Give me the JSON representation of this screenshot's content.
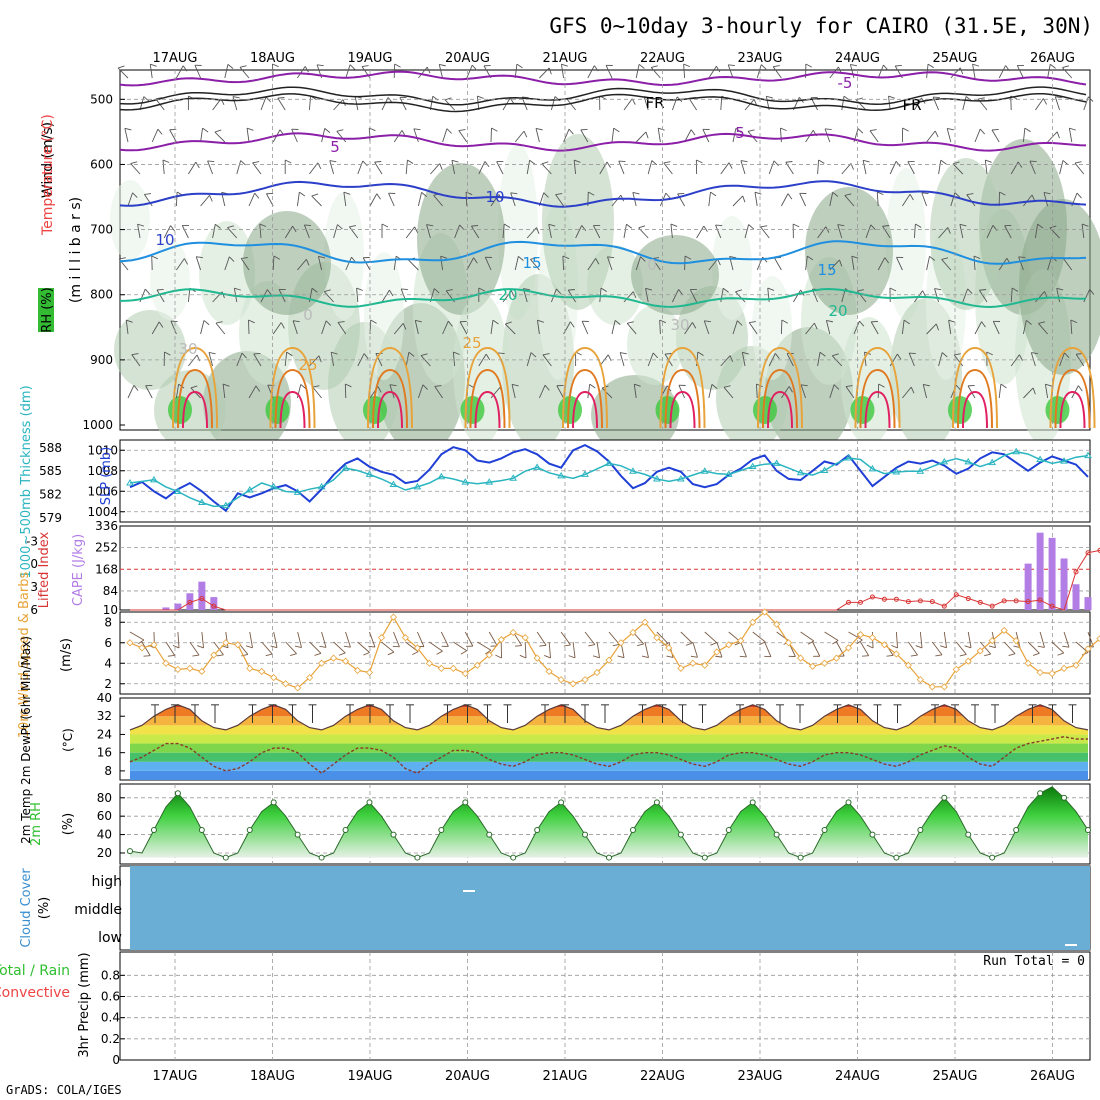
{
  "title": "GFS 0~10day 3-hourly for CAIRO (31.5E, 30N)",
  "dates": [
    "17AUG",
    "18AUG",
    "19AUG",
    "20AUG",
    "21AUG",
    "22AUG",
    "23AUG",
    "24AUG",
    "25AUG",
    "26AUG"
  ],
  "footer": "GrADS: COLA/IGES",
  "colors": {
    "panel_border": "#000000",
    "grid": "#999999",
    "slp": "#1f3fd6",
    "thickness": "#2ab5c0",
    "lifted_index": "#d93535",
    "cape": "#b27ee6",
    "wind_speed": "#e8a33a",
    "barb": "#7a5a44",
    "rh_fill": "#2fbf2f",
    "cloud": "#6aaed6"
  },
  "panels": {
    "vertical": {
      "ylabel_wind": "Wind (m/s)",
      "ylabel_temp": "Temperature (°C)",
      "ylabel_rh": "RH (%)",
      "ylabel_mb": "(m i l l i b a r s)",
      "yticks": [
        "500",
        "600",
        "700",
        "800",
        "900",
        "1000"
      ],
      "contour_labels": [
        "5",
        "5",
        "-5",
        "10",
        "10",
        "15",
        "15",
        "20",
        "20",
        "25",
        "25",
        "30",
        "30",
        "0",
        "0",
        "FR",
        "FR"
      ]
    },
    "slp": {
      "ylabel_slp": "SLP (mb)",
      "ylabel_thk": "1000~500mb Thickness (dm)",
      "slp_ticks": [
        "1010",
        "1008",
        "1006",
        "1004"
      ],
      "thk_ticks": [
        "588",
        "585",
        "582",
        "579"
      ]
    },
    "cape": {
      "ylabel_li": "Lifted Index",
      "ylabel_cape": "CAPE (J/kg)",
      "li_ticks": [
        "-3",
        "0",
        "3",
        "6"
      ],
      "cape_ticks": [
        "336",
        "252",
        "168",
        "84",
        "10"
      ]
    },
    "wind": {
      "ylabel": "10m Wind Speed & Barbs",
      "unit": "(m/s)",
      "ticks": [
        "8",
        "6",
        "4",
        "2"
      ]
    },
    "temp": {
      "ylabel": "2m Temp 2m DewPt (6hr Min/Max)",
      "unit": "(°C)",
      "ticks": [
        "40",
        "32",
        "24",
        "16",
        "8"
      ]
    },
    "rh": {
      "ylabel": "2m RH",
      "unit": "(%)",
      "ticks": [
        "80",
        "60",
        "40",
        "20"
      ]
    },
    "cloud": {
      "ylabel": "Cloud Cover",
      "unit": "(%)",
      "levels": [
        "high",
        "middle",
        "low"
      ]
    },
    "precip": {
      "ylabel_total": "Total / Rain",
      "ylabel_conv": "Convective",
      "ylabel": "3hr Precip (mm)",
      "ticks": [
        "0.8",
        "0.6",
        "0.4",
        "0.2",
        "0"
      ],
      "run_total": "Run Total = 0"
    }
  },
  "chart_data": [
    {
      "type": "line",
      "title": "Sea level pressure (mb)",
      "ylim": [
        1003,
        1011
      ],
      "values": [
        1006.4,
        1006.9,
        1006.0,
        1005.3,
        1006.2,
        1006.8,
        1006.0,
        1005.0,
        1004.1,
        1005.8,
        1005.4,
        1005.8,
        1006.3,
        1006.6,
        1006.0,
        1005.0,
        1006.2,
        1007.6,
        1008.7,
        1009.2,
        1008.4,
        1007.9,
        1007.6,
        1006.8,
        1007.0,
        1008.1,
        1009.6,
        1010.3,
        1010.0,
        1009.0,
        1008.8,
        1009.2,
        1009.8,
        1010.1,
        1009.6,
        1008.7,
        1008.3,
        1010.0,
        1010.5,
        1009.9,
        1008.9,
        1007.5,
        1006.3,
        1006.8,
        1007.9,
        1008.3,
        1007.9,
        1006.7,
        1006.4,
        1006.7,
        1007.6,
        1008.2,
        1009.1,
        1009.5,
        1008.0,
        1007.2,
        1007.1,
        1008.0,
        1008.9,
        1008.6,
        1009.5,
        1008.0,
        1006.5,
        1007.4,
        1008.3,
        1008.9,
        1008.7,
        1009.0,
        1008.5,
        1007.7,
        1008.2,
        1009.2,
        1009.8,
        1009.6,
        1008.8,
        1008.0,
        1008.8,
        1009.4,
        1009.0,
        1008.6,
        1007.4
      ]
    },
    {
      "type": "line",
      "title": "1000-500mb thickness (dm)",
      "ylim": [
        578.5,
        589
      ],
      "values": [
        583.5,
        583.7,
        583.9,
        583.0,
        582.4,
        581.6,
        581.0,
        580.5,
        580.6,
        581.6,
        582.6,
        583.5,
        583.0,
        582.4,
        582.3,
        582.7,
        583.0,
        583.9,
        585.4,
        585.1,
        584.6,
        584.0,
        583.3,
        582.6,
        583.0,
        583.5,
        584.3,
        584.0,
        583.6,
        583.4,
        583.6,
        583.8,
        584.1,
        585.0,
        585.5,
        584.8,
        584.4,
        584.1,
        584.6,
        585.3,
        586.0,
        585.7,
        585.0,
        584.6,
        584.0,
        583.7,
        584.0,
        584.5,
        585.0,
        584.7,
        584.6,
        585.1,
        585.6,
        585.9,
        586.0,
        585.4,
        584.8,
        584.5,
        585.1,
        586.0,
        586.7,
        586.5,
        585.3,
        584.7,
        584.9,
        585.0,
        585.0,
        585.6,
        586.2,
        586.6,
        586.2,
        585.6,
        586.1,
        587.0,
        587.5,
        587.2,
        586.5,
        586.0,
        586.3,
        586.8,
        587.0
      ]
    },
    {
      "type": "bar",
      "title": "CAPE (J/kg)",
      "ylim": [
        10,
        336
      ],
      "values": [
        0,
        0,
        0,
        20,
        35,
        75,
        120,
        60,
        0,
        0,
        0,
        0,
        0,
        0,
        0,
        0,
        0,
        0,
        0,
        0,
        0,
        0,
        0,
        0,
        0,
        0,
        0,
        0,
        0,
        0,
        0,
        0,
        0,
        0,
        0,
        0,
        0,
        0,
        0,
        0,
        0,
        0,
        0,
        0,
        0,
        0,
        0,
        0,
        0,
        0,
        0,
        0,
        0,
        0,
        0,
        0,
        0,
        0,
        0,
        0,
        0,
        0,
        0,
        0,
        0,
        0,
        0,
        5,
        0,
        0,
        0,
        0,
        0,
        0,
        0,
        190,
        310,
        290,
        210,
        110,
        60
      ]
    },
    {
      "type": "line",
      "title": "Lifted Index",
      "ylim": [
        -5,
        6
      ],
      "values": [
        6,
        6,
        6,
        6,
        6,
        5,
        4.5,
        5.5,
        6,
        6,
        6,
        6,
        6,
        6,
        6,
        6,
        6,
        6,
        6,
        6,
        6,
        6,
        6,
        6,
        6,
        6,
        6,
        6,
        6,
        6,
        6,
        6,
        6,
        6,
        6,
        6,
        6,
        6,
        6,
        6,
        6,
        6,
        6,
        6,
        6,
        6,
        6,
        6,
        6,
        6,
        6,
        6,
        6,
        6,
        6,
        6,
        6,
        6,
        6,
        6,
        5,
        5,
        4.3,
        4.6,
        4.6,
        4.9,
        4.8,
        4.9,
        5.5,
        4,
        4.5,
        5,
        5.5,
        4.8,
        4.8,
        4.9,
        4.7,
        5.5,
        6,
        1,
        -1.5,
        -1.8,
        -1.5,
        -0.5,
        1
      ]
    },
    {
      "type": "line",
      "title": "10m wind speed (m/s)",
      "ylim": [
        1,
        9
      ],
      "values": [
        6,
        5.5,
        5.8,
        4,
        3.4,
        3.5,
        3.2,
        4.8,
        6,
        5.8,
        3.5,
        3.2,
        2.6,
        2.0,
        1.6,
        2.6,
        4,
        4.5,
        4.2,
        3.3,
        3.1,
        6.5,
        8.5,
        6.5,
        5.5,
        4,
        3.5,
        3.5,
        3,
        3.8,
        4.8,
        6.3,
        7,
        6.5,
        4.5,
        3.2,
        2.4,
        2.0,
        2.4,
        3.1,
        4.3,
        6,
        7,
        8,
        6.5,
        5.5,
        3.5,
        4,
        3.8,
        5.1,
        5.8,
        6.2,
        8,
        9,
        7.8,
        6,
        4.5,
        3.7,
        4,
        4.5,
        5.5,
        6.8,
        6.5,
        5.8,
        4.9,
        3.8,
        2.4,
        1.7,
        1.7,
        3.4,
        4.2,
        5.2,
        6.2,
        7.2,
        6.2,
        4,
        3.1,
        3,
        3.5,
        3.8,
        5.4,
        6.4,
        6.5,
        5.5,
        4,
        3.2,
        3.6
      ]
    },
    {
      "type": "area",
      "title": "2m temperature (°C)",
      "ylim": [
        4,
        40
      ],
      "values": [
        26,
        28,
        32,
        35,
        37,
        35,
        30,
        27,
        26,
        28,
        32,
        35,
        37,
        35,
        30,
        27,
        26,
        28,
        32,
        35,
        37,
        35,
        30,
        27,
        26,
        28,
        32,
        35,
        37,
        35,
        30,
        27,
        26,
        28,
        32,
        35,
        37,
        35,
        30,
        27,
        26,
        28,
        32,
        35,
        37,
        35,
        30,
        27,
        26,
        28,
        32,
        35,
        37,
        35,
        30,
        27,
        26,
        28,
        32,
        35,
        37,
        35,
        30,
        27,
        26,
        28,
        32,
        35,
        37,
        35,
        30,
        27,
        26,
        28,
        32,
        35,
        37,
        35,
        30,
        27,
        26
      ]
    },
    {
      "type": "line",
      "title": "2m dew point (°C)",
      "ylim": [
        4,
        40
      ],
      "values": [
        12,
        14,
        17,
        20,
        20,
        18,
        14,
        10,
        8,
        9,
        12,
        16,
        18,
        18,
        16,
        11,
        7,
        11,
        15,
        18,
        18,
        17,
        14,
        9,
        7,
        11,
        14,
        17,
        17,
        16,
        13,
        11,
        10,
        12,
        15,
        16,
        16,
        15,
        13,
        11,
        10,
        12,
        15,
        16,
        16,
        15,
        13,
        11,
        10,
        12,
        15,
        16,
        16,
        15,
        13,
        11,
        10,
        12,
        15,
        16,
        16,
        15,
        13,
        11,
        10,
        12,
        15,
        17,
        19,
        18,
        14,
        11,
        10,
        14,
        18,
        20,
        21,
        22,
        23,
        22,
        22
      ]
    },
    {
      "type": "area",
      "title": "2m RH (%)",
      "ylim": [
        8,
        95
      ],
      "values": [
        22,
        20,
        45,
        70,
        85,
        70,
        45,
        20,
        15,
        20,
        45,
        65,
        75,
        60,
        40,
        20,
        15,
        20,
        45,
        65,
        75,
        60,
        40,
        20,
        15,
        20,
        45,
        65,
        75,
        60,
        40,
        20,
        15,
        20,
        45,
        65,
        75,
        60,
        40,
        20,
        15,
        20,
        45,
        65,
        75,
        60,
        40,
        20,
        15,
        20,
        45,
        65,
        75,
        60,
        40,
        20,
        15,
        20,
        45,
        65,
        75,
        60,
        40,
        20,
        15,
        20,
        45,
        65,
        80,
        65,
        40,
        20,
        15,
        20,
        45,
        70,
        85,
        92,
        80,
        65,
        45
      ]
    },
    {
      "type": "bar",
      "title": "3hr Precip (mm)",
      "ylim": [
        0,
        1
      ],
      "values": []
    }
  ]
}
